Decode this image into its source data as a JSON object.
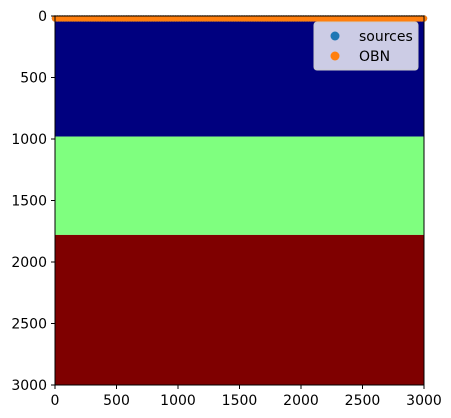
{
  "chart_data": {
    "type": "heatmap",
    "title": "",
    "xlabel": "",
    "ylabel": "",
    "xlim": [
      0,
      3000
    ],
    "ylim": [
      3000,
      0
    ],
    "xticks": [
      0,
      500,
      1000,
      1500,
      2000,
      2500,
      3000
    ],
    "yticks": [
      0,
      500,
      1000,
      1500,
      2000,
      2500,
      3000
    ],
    "colormap": "jet",
    "layers": [
      {
        "depth_top": 0,
        "depth_bottom": 980,
        "color": "#00007f"
      },
      {
        "depth_top": 980,
        "depth_bottom": 1780,
        "color": "#7fff7f"
      },
      {
        "depth_top": 1780,
        "depth_bottom": 3000,
        "color": "#7f0000"
      }
    ],
    "series": [
      {
        "name": "sources",
        "type": "scatter",
        "color": "#1f77b4",
        "y": 20,
        "x_start": 0,
        "x_end": 3000,
        "x_step": 20
      },
      {
        "name": "OBN",
        "type": "scatter",
        "color": "#ff7f0e",
        "y": 20,
        "x_start": 0,
        "x_end": 3000,
        "x_step": 20
      }
    ],
    "legend": {
      "position": "top-right",
      "entries": [
        "sources",
        "OBN"
      ]
    },
    "grid": false
  }
}
